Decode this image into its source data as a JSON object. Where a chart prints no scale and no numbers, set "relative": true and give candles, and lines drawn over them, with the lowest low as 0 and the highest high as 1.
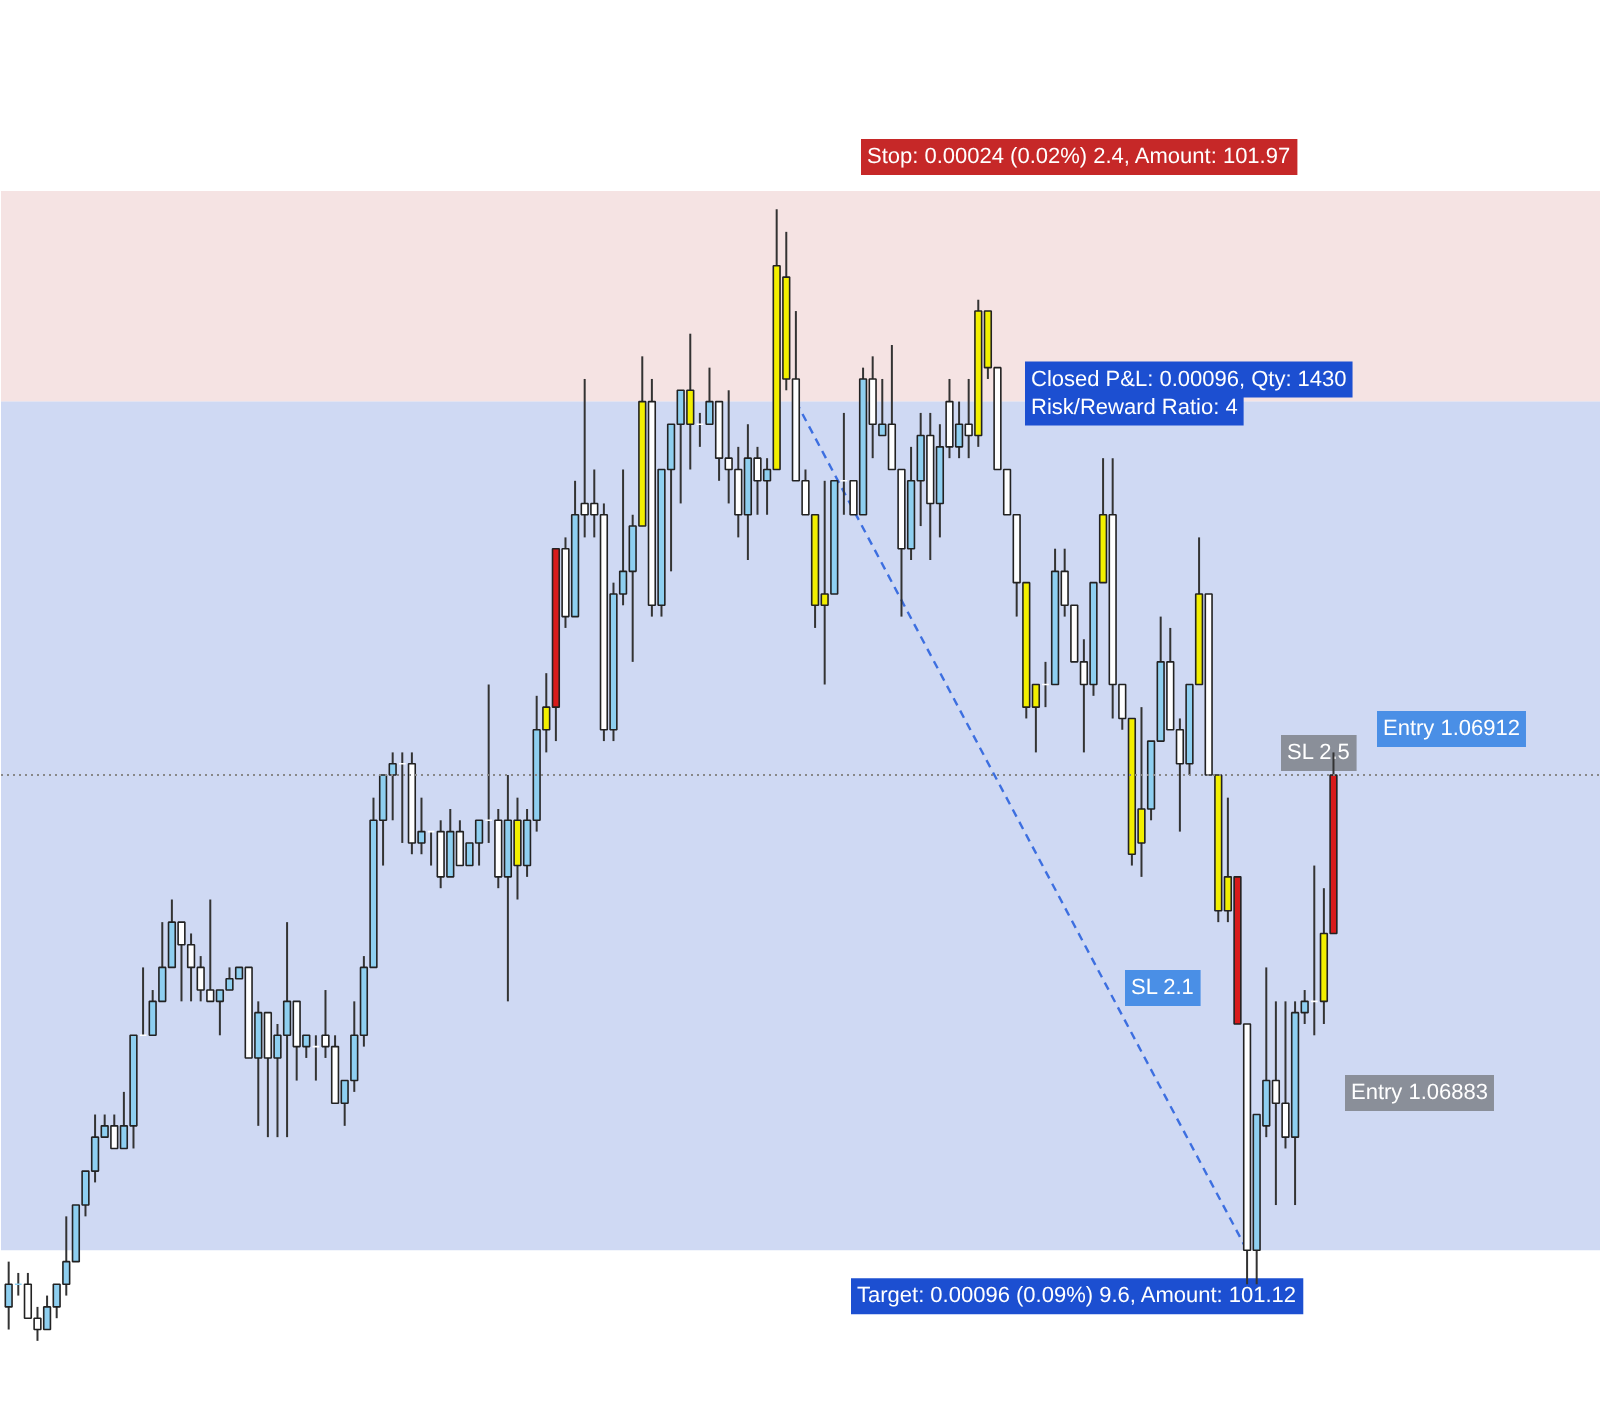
{
  "chart_data": {
    "type": "candlestick",
    "relative": true,
    "tick_labels": false,
    "grid": false,
    "categories": [
      null,
      null,
      null,
      null,
      null,
      null,
      null,
      null,
      null,
      null,
      null,
      null,
      null,
      null,
      null,
      null,
      null,
      null,
      null,
      null,
      null,
      null,
      null,
      null,
      null,
      null,
      null,
      null,
      null,
      null,
      null,
      null,
      null,
      null,
      null,
      null,
      null,
      null,
      null,
      null,
      null,
      null,
      null,
      null,
      null,
      null,
      null,
      null,
      null,
      null,
      null,
      null,
      null,
      null,
      null,
      null,
      null,
      null,
      null,
      null,
      null,
      null,
      null,
      null,
      null,
      null,
      null,
      null,
      null,
      null,
      null,
      null,
      null,
      null,
      null,
      null,
      null,
      null,
      null,
      null,
      null,
      null,
      null,
      null,
      null,
      null,
      null,
      null,
      null,
      null,
      null,
      null,
      null,
      null,
      null,
      null,
      null,
      null,
      null,
      null,
      null,
      null,
      null,
      null,
      null,
      null,
      null,
      null,
      null,
      null,
      null,
      null,
      null,
      null,
      null,
      null,
      null,
      null,
      null,
      null,
      null,
      null,
      null,
      null,
      null,
      null,
      null,
      null,
      null,
      null,
      null,
      null,
      null,
      null,
      null,
      null,
      null,
      null,
      null
    ],
    "ohlc": [
      [
        0.03,
        0.07,
        0.01,
        0.05
      ],
      [
        0.05,
        0.06,
        0.04,
        0.05
      ],
      [
        0.05,
        0.06,
        0.02,
        0.02
      ],
      [
        0.02,
        0.03,
        0.0,
        0.01
      ],
      [
        0.01,
        0.04,
        0.01,
        0.03
      ],
      [
        0.03,
        0.05,
        0.02,
        0.05
      ],
      [
        0.05,
        0.11,
        0.04,
        0.07
      ],
      [
        0.07,
        0.12,
        0.07,
        0.12
      ],
      [
        0.12,
        0.15,
        0.11,
        0.15
      ],
      [
        0.15,
        0.2,
        0.14,
        0.18
      ],
      [
        0.18,
        0.2,
        0.18,
        0.19
      ],
      [
        0.19,
        0.2,
        0.17,
        0.17
      ],
      [
        0.17,
        0.22,
        0.17,
        0.19
      ],
      [
        0.19,
        0.27,
        0.17,
        0.27
      ],
      [
        0.27,
        0.33,
        0.27,
        0.27
      ],
      [
        0.27,
        0.31,
        0.27,
        0.3
      ],
      [
        0.3,
        0.37,
        0.3,
        0.33
      ],
      [
        0.33,
        0.39,
        0.33,
        0.37
      ],
      [
        0.37,
        0.37,
        0.3,
        0.35
      ],
      [
        0.35,
        0.36,
        0.3,
        0.33
      ],
      [
        0.33,
        0.34,
        0.3,
        0.31
      ],
      [
        0.31,
        0.39,
        0.3,
        0.3
      ],
      [
        0.3,
        0.31,
        0.27,
        0.31
      ],
      [
        0.31,
        0.33,
        0.31,
        0.32
      ],
      [
        0.32,
        0.33,
        0.32,
        0.33
      ],
      [
        0.33,
        0.33,
        0.25,
        0.25
      ],
      [
        0.25,
        0.3,
        0.19,
        0.29
      ],
      [
        0.29,
        0.29,
        0.18,
        0.25
      ],
      [
        0.25,
        0.28,
        0.18,
        0.27
      ],
      [
        0.27,
        0.37,
        0.18,
        0.3
      ],
      [
        0.3,
        0.3,
        0.23,
        0.26
      ],
      [
        0.26,
        0.27,
        0.25,
        0.27
      ],
      [
        0.26,
        0.27,
        0.23,
        0.26
      ],
      [
        0.27,
        0.31,
        0.25,
        0.26
      ],
      [
        0.26,
        0.27,
        0.21,
        0.21
      ],
      [
        0.21,
        0.23,
        0.19,
        0.23
      ],
      [
        0.23,
        0.3,
        0.22,
        0.27
      ],
      [
        0.27,
        0.34,
        0.26,
        0.33
      ],
      [
        0.33,
        0.48,
        0.33,
        0.46
      ],
      [
        0.46,
        0.5,
        0.42,
        0.5
      ],
      [
        0.5,
        0.52,
        0.46,
        0.51
      ],
      [
        0.51,
        0.52,
        0.44,
        0.51
      ],
      [
        0.51,
        0.52,
        0.43,
        0.44
      ],
      [
        0.44,
        0.48,
        0.43,
        0.45
      ],
      [
        0.45,
        0.45,
        0.42,
        0.45
      ],
      [
        0.45,
        0.46,
        0.4,
        0.41
      ],
      [
        0.41,
        0.47,
        0.41,
        0.45
      ],
      [
        0.45,
        0.46,
        0.42,
        0.42
      ],
      [
        0.42,
        0.44,
        0.42,
        0.44
      ],
      [
        0.44,
        0.46,
        0.42,
        0.46
      ],
      [
        0.46,
        0.58,
        0.44,
        0.46
      ],
      [
        0.46,
        0.47,
        0.4,
        0.41
      ],
      [
        0.41,
        0.5,
        0.3,
        0.46
      ],
      [
        0.46,
        0.48,
        0.39,
        0.42
      ],
      [
        0.42,
        0.47,
        0.41,
        0.46
      ],
      [
        0.46,
        0.57,
        0.45,
        0.54
      ],
      [
        0.54,
        0.59,
        0.52,
        0.56
      ],
      [
        0.56,
        0.7,
        0.53,
        0.7
      ],
      [
        0.7,
        0.71,
        0.63,
        0.64
      ],
      [
        0.64,
        0.76,
        0.64,
        0.73
      ],
      [
        0.74,
        0.85,
        0.71,
        0.73
      ],
      [
        0.74,
        0.77,
        0.71,
        0.73
      ],
      [
        0.73,
        0.74,
        0.53,
        0.54
      ],
      [
        0.54,
        0.67,
        0.53,
        0.66
      ],
      [
        0.66,
        0.77,
        0.65,
        0.68
      ],
      [
        0.68,
        0.73,
        0.6,
        0.72
      ],
      [
        0.72,
        0.87,
        0.72,
        0.83
      ],
      [
        0.83,
        0.85,
        0.64,
        0.65
      ],
      [
        0.65,
        0.77,
        0.64,
        0.77
      ],
      [
        0.77,
        0.81,
        0.68,
        0.81
      ],
      [
        0.81,
        0.84,
        0.74,
        0.84
      ],
      [
        0.84,
        0.89,
        0.77,
        0.81
      ],
      [
        0.81,
        0.82,
        0.79,
        0.81
      ],
      [
        0.81,
        0.86,
        0.81,
        0.83
      ],
      [
        0.83,
        0.83,
        0.76,
        0.78
      ],
      [
        0.78,
        0.84,
        0.74,
        0.77
      ],
      [
        0.77,
        0.79,
        0.71,
        0.73
      ],
      [
        0.73,
        0.81,
        0.69,
        0.78
      ],
      [
        0.78,
        0.79,
        0.73,
        0.76
      ],
      [
        0.76,
        0.78,
        0.73,
        0.77
      ],
      [
        0.77,
        1.0,
        0.77,
        0.95
      ],
      [
        0.94,
        0.98,
        0.84,
        0.85
      ],
      [
        0.85,
        0.91,
        0.76,
        0.76
      ],
      [
        0.76,
        0.77,
        0.73,
        0.73
      ],
      [
        0.73,
        0.73,
        0.63,
        0.65
      ],
      [
        0.65,
        0.76,
        0.58,
        0.66
      ],
      [
        0.66,
        0.76,
        0.66,
        0.76
      ],
      [
        0.76,
        0.82,
        0.73,
        0.76
      ],
      [
        0.76,
        0.76,
        0.73,
        0.73
      ],
      [
        0.73,
        0.86,
        0.73,
        0.85
      ],
      [
        0.85,
        0.87,
        0.78,
        0.81
      ],
      [
        0.8,
        0.85,
        0.8,
        0.81
      ],
      [
        0.81,
        0.88,
        0.77,
        0.77
      ],
      [
        0.77,
        0.77,
        0.64,
        0.7
      ],
      [
        0.7,
        0.79,
        0.69,
        0.76
      ],
      [
        0.76,
        0.82,
        0.72,
        0.8
      ],
      [
        0.8,
        0.82,
        0.69,
        0.74
      ],
      [
        0.74,
        0.81,
        0.71,
        0.79
      ],
      [
        0.83,
        0.85,
        0.78,
        0.79
      ],
      [
        0.79,
        0.83,
        0.78,
        0.81
      ],
      [
        0.81,
        0.85,
        0.78,
        0.8
      ],
      [
        0.8,
        0.92,
        0.79,
        0.91
      ],
      [
        0.91,
        0.91,
        0.85,
        0.86
      ],
      [
        0.86,
        0.86,
        0.77,
        0.77
      ],
      [
        0.77,
        0.77,
        0.73,
        0.73
      ],
      [
        0.73,
        0.73,
        0.64,
        0.67
      ],
      [
        0.67,
        0.67,
        0.55,
        0.56
      ],
      [
        0.56,
        0.58,
        0.52,
        0.58
      ],
      [
        0.58,
        0.6,
        0.56,
        0.58
      ],
      [
        0.58,
        0.7,
        0.58,
        0.68
      ],
      [
        0.68,
        0.7,
        0.64,
        0.65
      ],
      [
        0.65,
        0.65,
        0.6,
        0.6
      ],
      [
        0.6,
        0.62,
        0.52,
        0.58
      ],
      [
        0.58,
        0.67,
        0.57,
        0.67
      ],
      [
        0.67,
        0.78,
        0.67,
        0.73
      ],
      [
        0.73,
        0.78,
        0.55,
        0.58
      ],
      [
        0.58,
        0.58,
        0.54,
        0.55
      ],
      [
        0.55,
        0.55,
        0.42,
        0.43
      ],
      [
        0.44,
        0.56,
        0.41,
        0.47
      ],
      [
        0.47,
        0.53,
        0.46,
        0.53
      ],
      [
        0.53,
        0.64,
        0.53,
        0.6
      ],
      [
        0.6,
        0.63,
        0.54,
        0.54
      ],
      [
        0.54,
        0.55,
        0.45,
        0.51
      ],
      [
        0.51,
        0.58,
        0.5,
        0.58
      ],
      [
        0.58,
        0.71,
        0.58,
        0.66
      ],
      [
        0.66,
        0.66,
        0.5,
        0.5
      ],
      [
        0.5,
        0.5,
        0.37,
        0.38
      ],
      [
        0.38,
        0.48,
        0.37,
        0.41
      ],
      [
        0.41,
        0.41,
        0.28,
        0.28
      ],
      [
        0.28,
        0.28,
        0.05,
        0.08
      ],
      [
        0.08,
        0.2,
        0.05,
        0.2
      ],
      [
        0.19,
        0.33,
        0.18,
        0.23
      ],
      [
        0.23,
        0.3,
        0.12,
        0.21
      ],
      [
        0.21,
        0.3,
        0.17,
        0.18
      ],
      [
        0.18,
        0.3,
        0.12,
        0.29
      ],
      [
        0.29,
        0.31,
        0.28,
        0.3
      ],
      [
        0.3,
        0.42,
        0.27,
        0.3
      ],
      [
        0.3,
        0.4,
        0.28,
        0.36
      ],
      [
        0.36,
        0.52,
        0.36,
        0.5
      ]
    ],
    "colors": [
      "#8ecff0",
      "#8ecff0",
      "#ffffff",
      "#ffffff",
      "#8ecff0",
      "#8ecff0",
      "#8ecff0",
      "#8ecff0",
      "#8ecff0",
      "#8ecff0",
      "#8ecff0",
      "#ffffff",
      "#8ecff0",
      "#8ecff0",
      "#ffffff",
      "#8ecff0",
      "#8ecff0",
      "#8ecff0",
      "#ffffff",
      "#ffffff",
      "#ffffff",
      "#ffffff",
      "#8ecff0",
      "#8ecff0",
      "#8ecff0",
      "#ffffff",
      "#8ecff0",
      "#ffffff",
      "#8ecff0",
      "#8ecff0",
      "#ffffff",
      "#8ecff0",
      "#ffffff",
      "#ffffff",
      "#ffffff",
      "#8ecff0",
      "#8ecff0",
      "#8ecff0",
      "#8ecff0",
      "#8ecff0",
      "#8ecff0",
      "#ffffff",
      "#ffffff",
      "#8ecff0",
      "#ffffff",
      "#ffffff",
      "#8ecff0",
      "#ffffff",
      "#8ecff0",
      "#8ecff0",
      "#ffffff",
      "#ffffff",
      "#8ecff0",
      "#f2ef00",
      "#8ecff0",
      "#8ecff0",
      "#f2ef00",
      "#d81b1b",
      "#ffffff",
      "#8ecff0",
      "#ffffff",
      "#ffffff",
      "#ffffff",
      "#8ecff0",
      "#8ecff0",
      "#8ecff0",
      "#f2ef00",
      "#ffffff",
      "#8ecff0",
      "#8ecff0",
      "#8ecff0",
      "#f2ef00",
      "#ffffff",
      "#8ecff0",
      "#ffffff",
      "#ffffff",
      "#ffffff",
      "#8ecff0",
      "#ffffff",
      "#8ecff0",
      "#f2ef00",
      "#f2ef00",
      "#ffffff",
      "#ffffff",
      "#f2ef00",
      "#f2ef00",
      "#8ecff0",
      "#ffffff",
      "#ffffff",
      "#8ecff0",
      "#ffffff",
      "#8ecff0",
      "#ffffff",
      "#ffffff",
      "#8ecff0",
      "#8ecff0",
      "#ffffff",
      "#8ecff0",
      "#ffffff",
      "#8ecff0",
      "#ffffff",
      "#f2ef00",
      "#f2ef00",
      "#ffffff",
      "#ffffff",
      "#ffffff",
      "#f2ef00",
      "#f2ef00",
      "#ffffff",
      "#8ecff0",
      "#ffffff",
      "#ffffff",
      "#ffffff",
      "#8ecff0",
      "#f2ef00",
      "#ffffff",
      "#ffffff",
      "#f2ef00",
      "#f2ef00",
      "#8ecff0",
      "#8ecff0",
      "#ffffff",
      "#ffffff",
      "#8ecff0",
      "#f2ef00",
      "#ffffff",
      "#f2ef00",
      "#f2ef00",
      "#d81b1b",
      "#ffffff",
      "#8ecff0",
      "#8ecff0",
      "#ffffff",
      "#ffffff",
      "#8ecff0",
      "#8ecff0",
      "#ffffff",
      "#f2ef00",
      "#d81b1b"
    ],
    "series": [
      {
        "type": "line",
        "color": "#3d6fe0",
        "line_style": "dashed",
        "values": [
          null,
          null,
          null,
          null,
          null,
          null,
          null,
          null,
          null,
          null,
          null,
          null,
          null,
          null,
          null,
          null,
          null,
          null,
          null,
          null,
          null,
          null,
          null,
          null,
          null,
          null,
          null,
          null,
          null,
          null,
          null,
          null,
          null,
          null,
          null,
          null,
          null,
          null,
          null,
          null,
          null,
          null,
          null,
          null,
          null,
          null,
          null,
          null,
          null,
          null,
          null,
          null,
          null,
          null,
          null,
          null,
          null,
          null,
          null,
          null,
          null,
          null,
          null,
          null,
          null,
          null,
          null,
          null,
          null,
          null,
          null,
          null,
          null,
          null,
          null,
          null,
          null,
          null,
          null,
          null,
          null,
          null,
          0.83,
          null,
          null,
          null,
          null,
          null,
          null,
          null,
          null,
          null,
          null,
          null,
          null,
          null,
          null,
          null,
          null,
          null,
          null,
          null,
          null,
          null,
          null,
          null,
          null,
          null,
          null,
          null,
          null,
          null,
          null,
          null,
          null,
          null,
          null,
          null,
          null,
          null,
          null,
          null,
          null,
          null,
          null,
          null,
          null,
          null,
          null,
          0.08,
          null,
          null,
          null,
          null,
          null,
          null,
          null,
          null,
          null
        ]
      }
    ],
    "bands": [
      {
        "axis": "y",
        "from": 0.83,
        "to": 1.016,
        "color": "#f3dcdc"
      },
      {
        "axis": "y",
        "from": 0.08,
        "to": 0.83,
        "color": "#c3cff0"
      }
    ],
    "ref_lines": [
      {
        "axis": "y",
        "value": 0.5,
        "label": "Entry 1.06912",
        "color": "#888888",
        "line_style": "dotted"
      }
    ],
    "annotations": [
      {
        "text": "Stop: 0.00024 (0.02%) 2.4, Amount: 101.97",
        "y": 1.016
      },
      {
        "text": "Closed P&L: 0.00096, Qty: 1430",
        "y": 0.83
      },
      {
        "text": "Risk/Reward Ratio: 4",
        "y": 0.83
      },
      {
        "text": "Target: 0.00096 (0.09%) 9.6, Amount: 101.12",
        "y": 0.08
      },
      {
        "text": "SL 2.5",
        "y": 0.5
      },
      {
        "text": "SL 2.1",
        "y": 0.31
      },
      "Entry 1.06883"
    ]
  }
}
